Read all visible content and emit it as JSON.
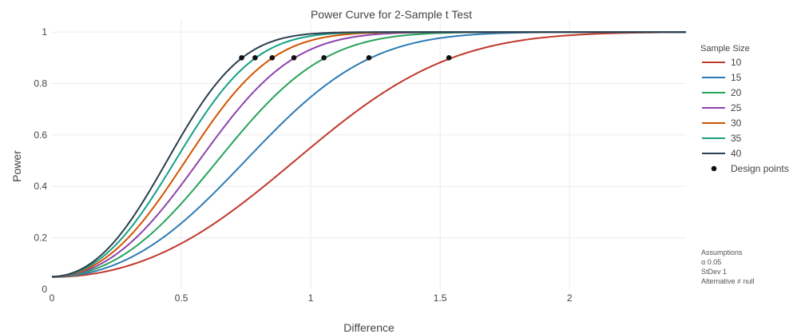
{
  "chart_data": {
    "type": "line",
    "title": "Power Curve for 2-Sample t Test",
    "xlabel": "Difference",
    "ylabel": "Power",
    "xlim": [
      0,
      2.45
    ],
    "ylim": [
      0,
      1.05
    ],
    "x_ticks": [
      0,
      0.5,
      1,
      1.5,
      2
    ],
    "x_tick_labels": [
      "0",
      "0.5",
      "1",
      "1.5",
      "2"
    ],
    "y_ticks": [
      0,
      0.2,
      0.4,
      0.6,
      0.8,
      1
    ],
    "y_tick_labels": [
      "0",
      "0.2",
      "0.4",
      "0.6",
      "0.8",
      "1"
    ],
    "grid": true,
    "legend_title": "Sample Size",
    "legend_position": "right",
    "series": [
      {
        "name": "10",
        "color": "#c0392b",
        "sample_size": 10
      },
      {
        "name": "15",
        "color": "#2e7bb4",
        "sample_size": 15
      },
      {
        "name": "20",
        "color": "#27a35a",
        "sample_size": 20
      },
      {
        "name": "25",
        "color": "#8e44ad",
        "sample_size": 25
      },
      {
        "name": "30",
        "color": "#d35400",
        "sample_size": 30
      },
      {
        "name": "35",
        "color": "#16a085",
        "sample_size": 35
      },
      {
        "name": "40",
        "color": "#2c3e50",
        "sample_size": 40
      }
    ],
    "design_points": {
      "name": "Design points",
      "color": "#111111",
      "x": [
        1.534,
        1.225,
        1.051,
        0.935,
        0.851,
        0.785,
        0.733
      ],
      "y": [
        0.9,
        0.9,
        0.9,
        0.9,
        0.9,
        0.9,
        0.9
      ]
    },
    "assumptions": {
      "title": "Assumptions",
      "lines": [
        "α   0.05",
        "StDev   1",
        "Alternative   ≠ null"
      ]
    }
  }
}
